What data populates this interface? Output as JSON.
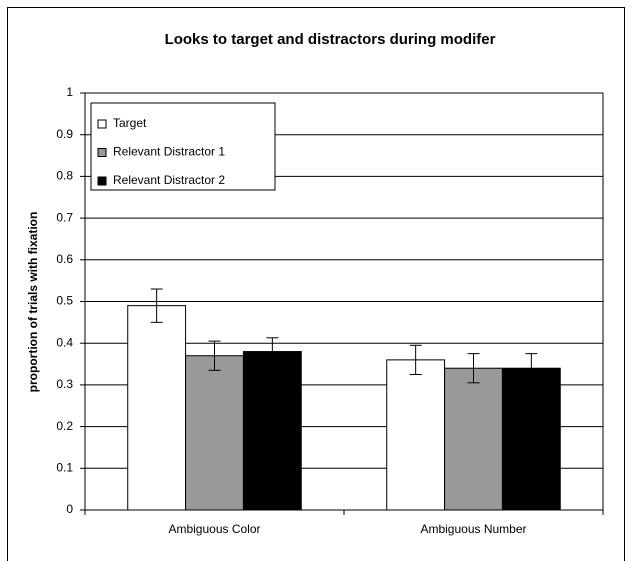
{
  "chart_data": {
    "type": "bar",
    "title": "Looks to target and distractors during modifer",
    "y_label": "proportion of trials with fixation",
    "categories": [
      "Ambiguous Color",
      "Ambiguous Number"
    ],
    "series": [
      {
        "name": "Target",
        "color": "#ffffff",
        "values": [
          0.49,
          0.36
        ],
        "errors": [
          0.04,
          0.035
        ]
      },
      {
        "name": "Relevant Distractor 1",
        "color": "#999999",
        "values": [
          0.37,
          0.34
        ],
        "errors": [
          0.035,
          0.035
        ]
      },
      {
        "name": "Relevant Distractor 2",
        "color": "#000000",
        "values": [
          0.38,
          0.34
        ],
        "errors": [
          0.033,
          0.035
        ]
      }
    ],
    "ylim": [
      0,
      1
    ],
    "yticks": [
      0,
      0.1,
      0.2,
      0.3,
      0.4,
      0.5,
      0.6,
      0.7,
      0.8,
      0.9,
      1
    ],
    "grid": true,
    "legend": "top-left"
  }
}
